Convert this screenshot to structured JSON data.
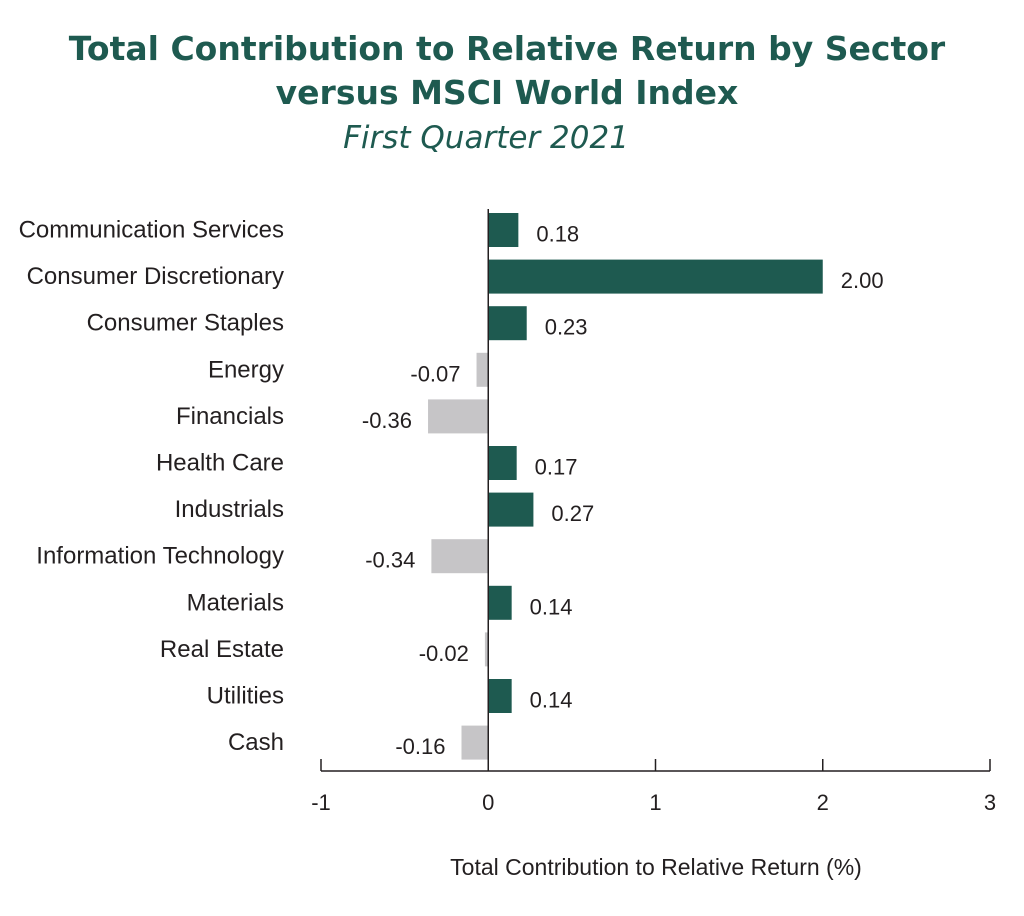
{
  "title_line1": "Total Contribution to Relative Return by Sector",
  "title_line2": "versus MSCI World Index",
  "subtitle": "First Quarter 2021",
  "chart_data": {
    "type": "bar",
    "orientation": "horizontal",
    "title": "Total Contribution to Relative Return by Sector versus MSCI World Index",
    "subtitle": "First Quarter 2021",
    "xlabel": "Total Contribution to Relative Return (%)",
    "ylabel": "",
    "xlim": [
      -1,
      3
    ],
    "xticks": [
      -1,
      0,
      1,
      2,
      3
    ],
    "xtick_labels": [
      "-1",
      "0",
      "1",
      "2",
      "3"
    ],
    "grid": false,
    "colors": {
      "positive": "#1e5a50",
      "negative": "#c6c5c7"
    },
    "categories": [
      "Communication Services",
      "Consumer Discretionary",
      "Consumer Staples",
      "Energy",
      "Financials",
      "Health Care",
      "Industrials",
      "Information Technology",
      "Materials",
      "Real Estate",
      "Utilities",
      "Cash"
    ],
    "values": [
      0.18,
      2.0,
      0.23,
      -0.07,
      -0.36,
      0.17,
      0.27,
      -0.34,
      0.14,
      -0.02,
      0.14,
      -0.16
    ],
    "value_labels": [
      "0.18",
      "2.00",
      "0.23",
      "-0.07",
      "-0.36",
      "0.17",
      "0.27",
      "-0.34",
      "0.14",
      "-0.02",
      "0.14",
      "-0.16"
    ]
  }
}
